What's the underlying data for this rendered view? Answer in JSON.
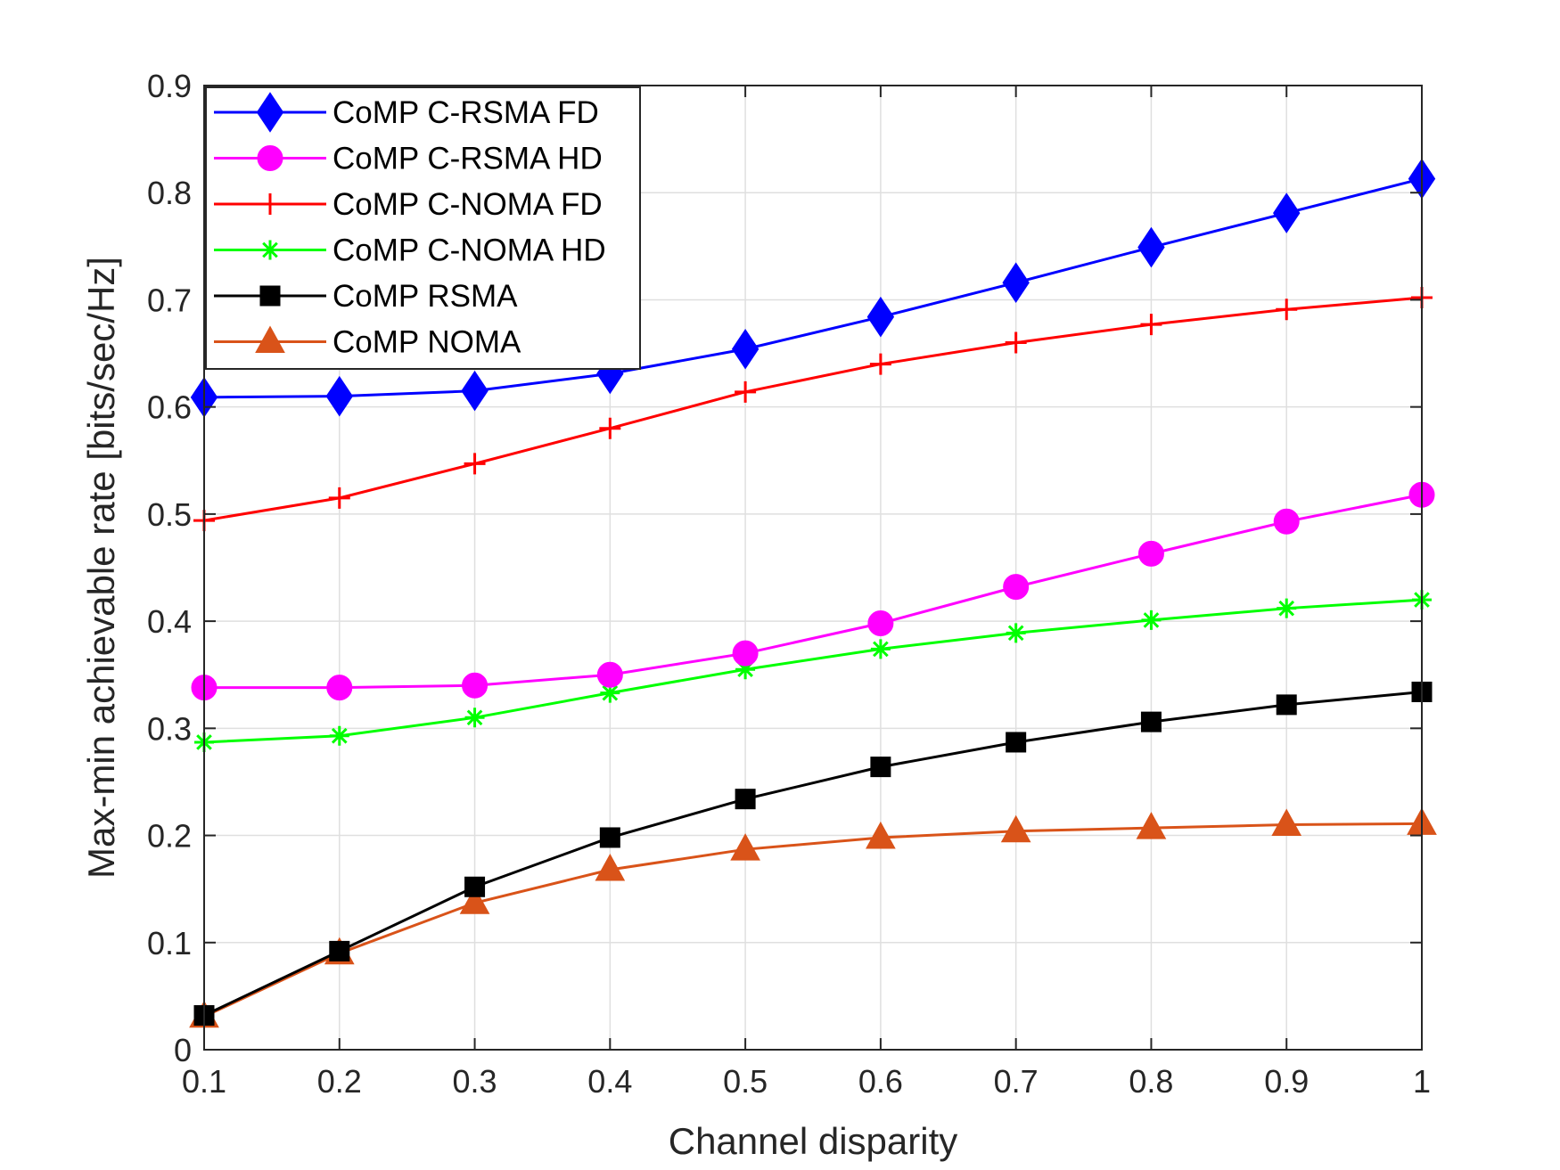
{
  "chart_data": {
    "type": "line",
    "title": "",
    "xlabel": "Channel disparity",
    "ylabel": "Max-min achievable rate [bits/sec/Hz]",
    "xlim": [
      0.1,
      1
    ],
    "ylim": [
      0,
      0.9
    ],
    "x": [
      0.1,
      0.2,
      0.3,
      0.4,
      0.5,
      0.6,
      0.7,
      0.8,
      0.9,
      1
    ],
    "xticks": [
      "0.1",
      "0.2",
      "0.3",
      "0.4",
      "0.5",
      "0.6",
      "0.7",
      "0.8",
      "0.9",
      "1"
    ],
    "yticks": [
      "0",
      "0.1",
      "0.2",
      "0.3",
      "0.4",
      "0.5",
      "0.6",
      "0.7",
      "0.8",
      "0.9"
    ],
    "grid": true,
    "legend_position": "top-left",
    "series": [
      {
        "name": "CoMP C-RSMA FD",
        "color": "#0000ff",
        "marker": "diamond",
        "values": [
          0.609,
          0.61,
          0.615,
          0.631,
          0.654,
          0.684,
          0.716,
          0.749,
          0.781,
          0.813
        ]
      },
      {
        "name": "CoMP C-RSMA HD",
        "color": "#ff00ff",
        "marker": "circle",
        "values": [
          0.338,
          0.338,
          0.34,
          0.35,
          0.37,
          0.398,
          0.432,
          0.463,
          0.493,
          0.518
        ]
      },
      {
        "name": "CoMP C-NOMA FD",
        "color": "#ff0000",
        "marker": "plus",
        "values": [
          0.494,
          0.515,
          0.547,
          0.58,
          0.614,
          0.64,
          0.66,
          0.677,
          0.691,
          0.702
        ]
      },
      {
        "name": "CoMP C-NOMA HD",
        "color": "#00ff00",
        "marker": "asterisk",
        "values": [
          0.287,
          0.293,
          0.31,
          0.333,
          0.355,
          0.374,
          0.389,
          0.401,
          0.412,
          0.42
        ]
      },
      {
        "name": "CoMP RSMA",
        "color": "#000000",
        "marker": "square",
        "values": [
          0.032,
          0.092,
          0.152,
          0.198,
          0.234,
          0.264,
          0.287,
          0.306,
          0.322,
          0.334
        ]
      },
      {
        "name": "CoMP NOMA",
        "color": "#d95319",
        "marker": "triangle",
        "values": [
          0.031,
          0.09,
          0.137,
          0.168,
          0.187,
          0.198,
          0.204,
          0.207,
          0.21,
          0.211
        ]
      }
    ]
  }
}
